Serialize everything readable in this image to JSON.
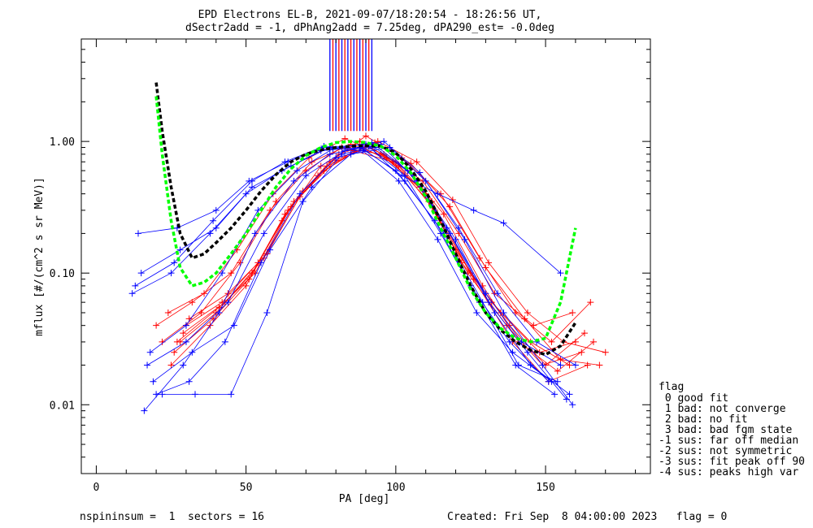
{
  "chart_data": {
    "type": "line",
    "title_line1": "EPD Electrons EL-B, 2021-09-07/18:20:54 - 18:26:56 UT,",
    "title_line2": "dSectr2add = -1, dPhAng2add = 7.25deg, dPA290_est=  -0.0deg",
    "xlabel": "PA [deg]",
    "ylabel": "mflux [#/(cm^2 s sr MeV)]",
    "xlim": [
      -5,
      185
    ],
    "ylim": [
      0.003,
      6.0
    ],
    "yscale": "log",
    "xticks": [
      0,
      50,
      100,
      150
    ],
    "yticks": [
      {
        "value": 0.01,
        "label": "0.01"
      },
      {
        "value": 0.1,
        "label": "0.10"
      },
      {
        "value": 1.0,
        "label": "1.00"
      }
    ],
    "colors": {
      "red": "#ff0000",
      "blue": "#0000ff",
      "fit_black": "#000000",
      "fit_green": "#00ff00"
    },
    "series": [
      {
        "color": "red",
        "x": [
          20,
          32,
          45,
          58,
          70,
          82,
          95,
          108,
          120,
          132,
          145,
          158
        ],
        "y": [
          0.04,
          0.06,
          0.1,
          0.3,
          0.6,
          0.9,
          0.8,
          0.45,
          0.15,
          0.06,
          0.03,
          0.02
        ]
      },
      {
        "color": "red",
        "x": [
          22,
          35,
          48,
          60,
          72,
          85,
          97,
          110,
          122,
          135,
          148,
          160
        ],
        "y": [
          0.03,
          0.05,
          0.12,
          0.35,
          0.7,
          0.95,
          0.75,
          0.4,
          0.12,
          0.05,
          0.025,
          0.03
        ]
      },
      {
        "color": "red",
        "x": [
          25,
          38,
          50,
          62,
          75,
          88,
          100,
          112,
          125,
          138,
          150,
          163
        ],
        "y": [
          0.02,
          0.04,
          0.08,
          0.25,
          0.65,
          1.0,
          0.7,
          0.35,
          0.1,
          0.04,
          0.02,
          0.035
        ]
      },
      {
        "color": "red",
        "x": [
          24,
          36,
          47,
          59,
          71,
          83,
          96,
          109,
          121,
          133,
          146,
          159
        ],
        "y": [
          0.05,
          0.07,
          0.15,
          0.4,
          0.75,
          1.05,
          0.8,
          0.5,
          0.2,
          0.07,
          0.04,
          0.05
        ]
      },
      {
        "color": "red",
        "x": [
          28,
          40,
          52,
          64,
          76,
          89,
          101,
          113,
          126,
          139,
          151,
          164
        ],
        "y": [
          0.03,
          0.05,
          0.1,
          0.3,
          0.6,
          0.9,
          0.65,
          0.3,
          0.09,
          0.03,
          0.015,
          0.02
        ]
      },
      {
        "color": "red",
        "x": [
          26,
          39,
          51,
          63,
          74,
          86,
          99,
          111,
          124,
          137,
          149,
          162
        ],
        "y": [
          0.025,
          0.045,
          0.09,
          0.28,
          0.55,
          0.85,
          0.7,
          0.35,
          0.1,
          0.04,
          0.02,
          0.025
        ]
      },
      {
        "color": "red",
        "x": [
          30,
          42,
          54,
          66,
          78,
          90,
          102,
          115,
          128,
          140,
          152,
          165
        ],
        "y": [
          0.04,
          0.06,
          0.12,
          0.35,
          0.7,
          1.1,
          0.75,
          0.4,
          0.13,
          0.05,
          0.03,
          0.06
        ]
      },
      {
        "color": "red",
        "x": [
          27,
          41,
          53,
          65,
          77,
          91,
          104,
          116,
          129,
          141,
          154,
          166
        ],
        "y": [
          0.03,
          0.055,
          0.1,
          0.32,
          0.65,
          0.92,
          0.6,
          0.28,
          0.08,
          0.03,
          0.018,
          0.03
        ]
      },
      {
        "color": "red",
        "x": [
          29,
          43,
          56,
          68,
          80,
          93,
          105,
          118,
          130,
          143,
          155,
          168
        ],
        "y": [
          0.035,
          0.06,
          0.13,
          0.38,
          0.72,
          0.98,
          0.68,
          0.32,
          0.11,
          0.045,
          0.022,
          0.02
        ]
      },
      {
        "color": "red",
        "x": [
          31,
          44,
          57,
          69,
          81,
          94,
          107,
          119,
          131,
          144,
          156,
          170
        ],
        "y": [
          0.045,
          0.07,
          0.14,
          0.42,
          0.8,
          1.0,
          0.7,
          0.36,
          0.12,
          0.05,
          0.03,
          0.025
        ]
      },
      {
        "color": "blue",
        "x": [
          12,
          25,
          38,
          50,
          62,
          75,
          88,
          100,
          113,
          125,
          138,
          151
        ],
        "y": [
          0.07,
          0.1,
          0.2,
          0.4,
          0.6,
          0.85,
          0.9,
          0.6,
          0.25,
          0.08,
          0.03,
          0.015
        ]
      },
      {
        "color": "blue",
        "x": [
          15,
          28,
          40,
          52,
          65,
          78,
          90,
          103,
          115,
          128,
          140,
          153
        ],
        "y": [
          0.1,
          0.15,
          0.22,
          0.45,
          0.65,
          0.9,
          0.95,
          0.55,
          0.2,
          0.06,
          0.02,
          0.012
        ]
      },
      {
        "color": "blue",
        "x": [
          14,
          27,
          40,
          51,
          64,
          76,
          89,
          101,
          114,
          127,
          139,
          152
        ],
        "y": [
          0.2,
          0.22,
          0.3,
          0.5,
          0.7,
          0.9,
          0.85,
          0.5,
          0.18,
          0.05,
          0.025,
          0.015
        ]
      },
      {
        "color": "blue",
        "x": [
          18,
          30,
          42,
          54,
          67,
          79,
          92,
          104,
          117,
          130,
          142,
          155
        ],
        "y": [
          0.025,
          0.04,
          0.1,
          0.3,
          0.6,
          0.88,
          0.98,
          0.6,
          0.22,
          0.07,
          0.03,
          0.02
        ]
      },
      {
        "color": "blue",
        "x": [
          16,
          29,
          41,
          53,
          66,
          78,
          91,
          103,
          116,
          129,
          141,
          154
        ],
        "y": [
          0.009,
          0.02,
          0.05,
          0.2,
          0.5,
          0.8,
          0.92,
          0.5,
          0.2,
          0.06,
          0.02,
          0.015
        ]
      },
      {
        "color": "blue",
        "x": [
          20,
          31,
          43,
          55,
          68,
          80,
          93,
          106,
          118,
          131,
          144,
          157
        ],
        "y": [
          0.012,
          0.015,
          0.03,
          0.12,
          0.4,
          0.75,
          0.9,
          0.55,
          0.2,
          0.06,
          0.025,
          0.011
        ]
      },
      {
        "color": "blue",
        "x": [
          22,
          33,
          45,
          57,
          69,
          82,
          95,
          107,
          120,
          133,
          145,
          158
        ],
        "y": [
          0.012,
          0.012,
          0.012,
          0.05,
          0.35,
          0.8,
          0.95,
          0.5,
          0.18,
          0.05,
          0.02,
          0.012
        ]
      },
      {
        "color": "blue",
        "x": [
          13,
          26,
          39,
          52,
          63,
          76,
          89,
          102,
          114,
          126,
          136,
          155
        ],
        "y": [
          0.08,
          0.12,
          0.25,
          0.5,
          0.7,
          0.92,
          0.88,
          0.55,
          0.4,
          0.3,
          0.24,
          0.1
        ]
      },
      {
        "color": "blue",
        "x": [
          17,
          30,
          44,
          56,
          70,
          83,
          96,
          108,
          121,
          134,
          147,
          160
        ],
        "y": [
          0.02,
          0.03,
          0.06,
          0.2,
          0.55,
          0.85,
          1.0,
          0.58,
          0.22,
          0.07,
          0.03,
          0.02
        ]
      },
      {
        "color": "blue",
        "x": [
          19,
          32,
          46,
          58,
          72,
          85,
          98,
          110,
          123,
          136,
          149,
          159
        ],
        "y": [
          0.015,
          0.025,
          0.04,
          0.15,
          0.45,
          0.8,
          0.9,
          0.5,
          0.18,
          0.05,
          0.02,
          0.01
        ]
      }
    ],
    "fit_black": {
      "x": [
        20,
        22,
        25,
        28,
        32,
        36,
        40,
        45,
        50,
        55,
        60,
        65,
        70,
        75,
        80,
        85,
        90,
        95,
        100,
        105,
        110,
        115,
        120,
        125,
        130,
        135,
        140,
        145,
        150,
        155,
        160
      ],
      "y": [
        2.8,
        1.2,
        0.45,
        0.2,
        0.13,
        0.14,
        0.17,
        0.22,
        0.3,
        0.42,
        0.56,
        0.7,
        0.8,
        0.86,
        0.9,
        0.92,
        0.93,
        0.92,
        0.82,
        0.62,
        0.42,
        0.25,
        0.14,
        0.08,
        0.05,
        0.037,
        0.03,
        0.026,
        0.024,
        0.028,
        0.042
      ]
    },
    "fit_green": {
      "x": [
        20,
        22,
        25,
        28,
        32,
        36,
        40,
        45,
        50,
        55,
        60,
        65,
        70,
        75,
        80,
        85,
        90,
        95,
        100,
        105,
        110,
        115,
        120,
        125,
        130,
        135,
        140,
        145,
        150,
        155,
        160
      ],
      "y": [
        2.2,
        0.8,
        0.25,
        0.11,
        0.08,
        0.085,
        0.1,
        0.14,
        0.2,
        0.3,
        0.45,
        0.62,
        0.78,
        0.9,
        0.98,
        1.0,
        0.98,
        0.92,
        0.78,
        0.58,
        0.38,
        0.22,
        0.13,
        0.075,
        0.05,
        0.038,
        0.032,
        0.03,
        0.032,
        0.06,
        0.22
      ]
    },
    "vlines": {
      "y_bottom": 1.2,
      "y_top": 6.0,
      "red_x": [
        79,
        81,
        83,
        85,
        87,
        89,
        91
      ],
      "blue_x": [
        78,
        80,
        82,
        84,
        86,
        88,
        90,
        92
      ]
    },
    "legend": {
      "title": "flag",
      "items": [
        " 0 good fit",
        " 1 bad: not converge",
        " 2 bad: no fit",
        " 3 bad: bad fgm state",
        "-1 sus: far off median",
        "-2 sus: not symmetric",
        "-3 sus: fit peak off 90",
        "-4 sus: peaks high var"
      ]
    },
    "footer": {
      "left": "nspininsum =  1  sectors = 16",
      "right": "Created: Fri Sep  8 04:00:00 2023   flag = 0"
    }
  }
}
